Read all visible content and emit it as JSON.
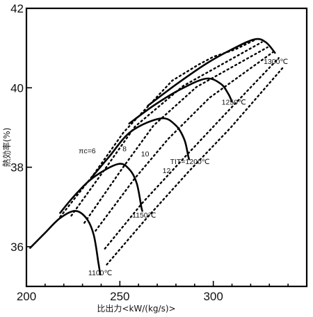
{
  "chart_data": {
    "type": "line",
    "title": "",
    "xlabel": "比出力<kW/(kg/s)>",
    "ylabel": "熱効率(%)",
    "xlim": [
      200,
      350
    ],
    "ylim": [
      35,
      42
    ],
    "x_ticks": [
      200,
      250,
      300
    ],
    "y_ticks": [
      36,
      38,
      40,
      42
    ],
    "x_tick_labels": [
      "200",
      "250",
      "300"
    ],
    "y_tick_labels": [
      "36",
      "38",
      "40",
      "42"
    ],
    "grid": false,
    "series": [
      {
        "name": "TIT=1100℃",
        "style": "solid",
        "points": [
          [
            202,
            35.97
          ],
          [
            210,
            36.35
          ],
          [
            218,
            36.72
          ],
          [
            226,
            36.9
          ],
          [
            232,
            36.72
          ],
          [
            236,
            36.3
          ],
          [
            238.5,
            35.6
          ],
          [
            239.5,
            35.3
          ]
        ]
      },
      {
        "name": "TIT=1150℃",
        "style": "solid",
        "points": [
          [
            218,
            36.85
          ],
          [
            226,
            37.3
          ],
          [
            236,
            37.75
          ],
          [
            249,
            38.08
          ],
          [
            255,
            37.95
          ],
          [
            259,
            37.6
          ],
          [
            261.5,
            37.0
          ],
          [
            262,
            36.9
          ]
        ]
      },
      {
        "name": "TIT=1200℃",
        "style": "solid",
        "points": [
          [
            235,
            37.75
          ],
          [
            244,
            38.25
          ],
          [
            256,
            38.9
          ],
          [
            272,
            39.23
          ],
          [
            280,
            39.05
          ],
          [
            284.5,
            38.7
          ],
          [
            286.5,
            38.3
          ],
          [
            287,
            38.2
          ]
        ]
      },
      {
        "name": "TIT=1250℃",
        "style": "solid",
        "points": [
          [
            255,
            39.1
          ],
          [
            268,
            39.55
          ],
          [
            282,
            39.95
          ],
          [
            296,
            40.23
          ],
          [
            304,
            40.1
          ],
          [
            308,
            39.85
          ],
          [
            310,
            39.65
          ]
        ]
      },
      {
        "name": "TIT=1300℃",
        "style": "solid",
        "points": [
          [
            265,
            39.55
          ],
          [
            280,
            40.08
          ],
          [
            296,
            40.6
          ],
          [
            310,
            40.97
          ],
          [
            322,
            41.22
          ],
          [
            328,
            41.15
          ],
          [
            333,
            40.88
          ]
        ]
      },
      {
        "name": "πc=6",
        "style": "dotted",
        "points": [
          [
            218,
            36.75
          ],
          [
            236,
            37.82
          ],
          [
            252,
            38.88
          ],
          [
            266,
            39.58
          ],
          [
            278,
            40.18
          ],
          [
            292,
            40.58
          ],
          [
            300,
            40.78
          ],
          [
            312,
            40.97
          ],
          [
            322,
            41.2
          ]
        ]
      },
      {
        "name": "πc=8",
        "style": "dotted",
        "points": [
          [
            224,
            36.78
          ],
          [
            242,
            37.95
          ],
          [
            258,
            39.02
          ],
          [
            284,
            40.05
          ],
          [
            326,
            41.15
          ]
        ]
      },
      {
        "name": "πc=10",
        "style": "dotted",
        "points": [
          [
            231,
            36.6
          ],
          [
            251,
            37.95
          ],
          [
            268,
            39.05
          ],
          [
            291,
            40.02
          ],
          [
            329,
            41.02
          ]
        ]
      },
      {
        "name": "πc=12",
        "style": "dotted",
        "points": [
          [
            237,
            36.4
          ],
          [
            258,
            37.72
          ],
          [
            276,
            38.72
          ],
          [
            298,
            39.75
          ],
          [
            332,
            40.9
          ]
        ]
      },
      {
        "name": "",
        "style": "dotted",
        "points": [
          [
            242,
            35.95
          ],
          [
            262,
            37.1
          ],
          [
            284,
            38.22
          ],
          [
            306,
            39.32
          ],
          [
            335,
            40.75
          ]
        ]
      },
      {
        "name": "",
        "style": "dotted",
        "points": [
          [
            243,
            35.55
          ],
          [
            264,
            36.7
          ],
          [
            287,
            37.9
          ],
          [
            309,
            38.98
          ],
          [
            338,
            40.55
          ]
        ]
      }
    ],
    "annotations": [
      {
        "text": "πc=6",
        "x": 232.5,
        "y": 38.35
      },
      {
        "text": "8",
        "x": 252.5,
        "y": 38.4
      },
      {
        "text": "10",
        "x": 263.5,
        "y": 38.27
      },
      {
        "text": "12",
        "x": 275,
        "y": 37.85
      },
      {
        "text": "TIT=1200℃",
        "x": 287.5,
        "y": 38.08
      },
      {
        "text": "1100℃",
        "x": 239.5,
        "y": 35.28
      },
      {
        "text": "1150℃",
        "x": 263,
        "y": 36.73
      },
      {
        "text": "1250℃",
        "x": 311,
        "y": 39.58
      },
      {
        "text": "1300℃",
        "x": 333.5,
        "y": 40.6
      }
    ]
  }
}
